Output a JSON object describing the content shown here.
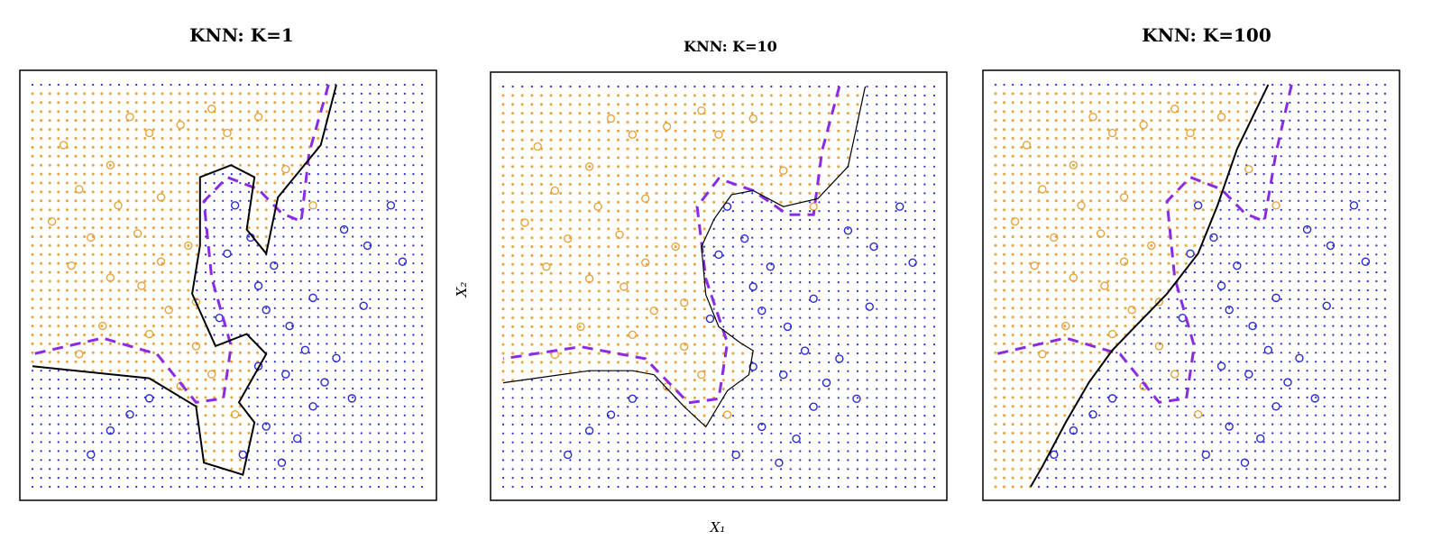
{
  "colors": {
    "orange": "#e8a33c",
    "blue": "#2a2ad0",
    "purple": "#8a2be2",
    "frame": "#000000"
  },
  "chart_data": [
    {
      "type": "scatter",
      "title": "KNN: K=1",
      "xlabel": "",
      "ylabel": "",
      "xlim": [
        0,
        1
      ],
      "ylim": [
        0,
        1
      ],
      "grid": "background class grid (orange / blue dots)",
      "legend": "none",
      "boundary_knn": [
        [
          0.78,
          1.0
        ],
        [
          0.74,
          0.85
        ],
        [
          0.63,
          0.72
        ],
        [
          0.6,
          0.58
        ],
        [
          0.55,
          0.64
        ],
        [
          0.57,
          0.77
        ],
        [
          0.51,
          0.8
        ],
        [
          0.43,
          0.77
        ],
        [
          0.43,
          0.6
        ],
        [
          0.41,
          0.48
        ],
        [
          0.47,
          0.35
        ],
        [
          0.55,
          0.38
        ],
        [
          0.6,
          0.33
        ],
        [
          0.53,
          0.21
        ],
        [
          0.57,
          0.16
        ],
        [
          0.54,
          0.03
        ],
        [
          0.44,
          0.06
        ],
        [
          0.42,
          0.2
        ],
        [
          0.3,
          0.27
        ],
        [
          0.0,
          0.3
        ]
      ],
      "boundary_bayes": [
        [
          0.76,
          1.0
        ],
        [
          0.71,
          0.83
        ],
        [
          0.69,
          0.66
        ],
        [
          0.64,
          0.68
        ],
        [
          0.58,
          0.74
        ],
        [
          0.5,
          0.77
        ],
        [
          0.44,
          0.71
        ],
        [
          0.46,
          0.52
        ],
        [
          0.51,
          0.35
        ],
        [
          0.49,
          0.22
        ],
        [
          0.42,
          0.21
        ],
        [
          0.32,
          0.33
        ],
        [
          0.18,
          0.37
        ],
        [
          0.0,
          0.33
        ]
      ],
      "class_orange": [
        [
          0.25,
          0.92
        ],
        [
          0.3,
          0.88
        ],
        [
          0.38,
          0.9
        ],
        [
          0.46,
          0.94
        ],
        [
          0.5,
          0.88
        ],
        [
          0.2,
          0.8
        ],
        [
          0.12,
          0.74
        ],
        [
          0.33,
          0.72
        ],
        [
          0.05,
          0.66
        ],
        [
          0.15,
          0.62
        ],
        [
          0.27,
          0.63
        ],
        [
          0.1,
          0.55
        ],
        [
          0.2,
          0.52
        ],
        [
          0.28,
          0.5
        ],
        [
          0.35,
          0.44
        ],
        [
          0.42,
          0.46
        ],
        [
          0.18,
          0.4
        ],
        [
          0.3,
          0.38
        ],
        [
          0.12,
          0.33
        ],
        [
          0.42,
          0.35
        ],
        [
          0.38,
          0.25
        ],
        [
          0.46,
          0.28
        ],
        [
          0.52,
          0.18
        ],
        [
          0.58,
          0.92
        ],
        [
          0.65,
          0.79
        ],
        [
          0.72,
          0.7
        ],
        [
          0.08,
          0.85
        ],
        [
          0.22,
          0.7
        ],
        [
          0.4,
          0.6
        ],
        [
          0.33,
          0.56
        ]
      ],
      "class_blue": [
        [
          0.52,
          0.7
        ],
        [
          0.56,
          0.62
        ],
        [
          0.62,
          0.55
        ],
        [
          0.6,
          0.44
        ],
        [
          0.66,
          0.4
        ],
        [
          0.7,
          0.34
        ],
        [
          0.58,
          0.3
        ],
        [
          0.65,
          0.28
        ],
        [
          0.75,
          0.26
        ],
        [
          0.72,
          0.2
        ],
        [
          0.6,
          0.15
        ],
        [
          0.68,
          0.12
        ],
        [
          0.54,
          0.08
        ],
        [
          0.64,
          0.06
        ],
        [
          0.3,
          0.22
        ],
        [
          0.25,
          0.18
        ],
        [
          0.2,
          0.14
        ],
        [
          0.15,
          0.08
        ],
        [
          0.8,
          0.64
        ],
        [
          0.86,
          0.6
        ],
        [
          0.92,
          0.7
        ],
        [
          0.95,
          0.56
        ],
        [
          0.85,
          0.45
        ],
        [
          0.78,
          0.32
        ],
        [
          0.82,
          0.22
        ],
        [
          0.72,
          0.47
        ],
        [
          0.48,
          0.42
        ],
        [
          0.5,
          0.58
        ],
        [
          0.58,
          0.5
        ]
      ]
    },
    {
      "type": "scatter",
      "title": "KNN: K=10",
      "xlabel": "X₁",
      "ylabel": "X₂",
      "xlim": [
        0,
        1
      ],
      "ylim": [
        0,
        1
      ],
      "grid": "background class grid (orange / blue dots)",
      "legend": "none",
      "boundary_knn": [
        [
          0.84,
          1.0
        ],
        [
          0.8,
          0.8
        ],
        [
          0.73,
          0.72
        ],
        [
          0.65,
          0.7
        ],
        [
          0.58,
          0.74
        ],
        [
          0.53,
          0.73
        ],
        [
          0.49,
          0.67
        ],
        [
          0.46,
          0.6
        ],
        [
          0.47,
          0.48
        ],
        [
          0.5,
          0.4
        ],
        [
          0.55,
          0.36
        ],
        [
          0.58,
          0.34
        ],
        [
          0.57,
          0.28
        ],
        [
          0.52,
          0.24
        ],
        [
          0.47,
          0.15
        ],
        [
          0.42,
          0.2
        ],
        [
          0.35,
          0.28
        ],
        [
          0.3,
          0.29
        ],
        [
          0.2,
          0.29
        ],
        [
          0.0,
          0.26
        ]
      ],
      "boundary_bayes": [
        [
          0.78,
          1.0
        ],
        [
          0.74,
          0.84
        ],
        [
          0.72,
          0.68
        ],
        [
          0.66,
          0.68
        ],
        [
          0.58,
          0.74
        ],
        [
          0.5,
          0.77
        ],
        [
          0.45,
          0.7
        ],
        [
          0.47,
          0.52
        ],
        [
          0.52,
          0.36
        ],
        [
          0.5,
          0.22
        ],
        [
          0.43,
          0.21
        ],
        [
          0.33,
          0.32
        ],
        [
          0.18,
          0.35
        ],
        [
          0.0,
          0.32
        ]
      ],
      "class_orange": [
        [
          0.25,
          0.92
        ],
        [
          0.3,
          0.88
        ],
        [
          0.38,
          0.9
        ],
        [
          0.46,
          0.94
        ],
        [
          0.5,
          0.88
        ],
        [
          0.2,
          0.8
        ],
        [
          0.12,
          0.74
        ],
        [
          0.33,
          0.72
        ],
        [
          0.05,
          0.66
        ],
        [
          0.15,
          0.62
        ],
        [
          0.27,
          0.63
        ],
        [
          0.1,
          0.55
        ],
        [
          0.2,
          0.52
        ],
        [
          0.28,
          0.5
        ],
        [
          0.35,
          0.44
        ],
        [
          0.42,
          0.46
        ],
        [
          0.18,
          0.4
        ],
        [
          0.3,
          0.38
        ],
        [
          0.12,
          0.33
        ],
        [
          0.42,
          0.35
        ],
        [
          0.38,
          0.25
        ],
        [
          0.46,
          0.28
        ],
        [
          0.52,
          0.18
        ],
        [
          0.58,
          0.92
        ],
        [
          0.65,
          0.79
        ],
        [
          0.72,
          0.7
        ],
        [
          0.08,
          0.85
        ],
        [
          0.22,
          0.7
        ],
        [
          0.4,
          0.6
        ],
        [
          0.33,
          0.56
        ]
      ],
      "class_blue": [
        [
          0.52,
          0.7
        ],
        [
          0.56,
          0.62
        ],
        [
          0.62,
          0.55
        ],
        [
          0.6,
          0.44
        ],
        [
          0.66,
          0.4
        ],
        [
          0.7,
          0.34
        ],
        [
          0.58,
          0.3
        ],
        [
          0.65,
          0.28
        ],
        [
          0.75,
          0.26
        ],
        [
          0.72,
          0.2
        ],
        [
          0.6,
          0.15
        ],
        [
          0.68,
          0.12
        ],
        [
          0.54,
          0.08
        ],
        [
          0.64,
          0.06
        ],
        [
          0.3,
          0.22
        ],
        [
          0.25,
          0.18
        ],
        [
          0.2,
          0.14
        ],
        [
          0.15,
          0.08
        ],
        [
          0.8,
          0.64
        ],
        [
          0.86,
          0.6
        ],
        [
          0.92,
          0.7
        ],
        [
          0.95,
          0.56
        ],
        [
          0.85,
          0.45
        ],
        [
          0.78,
          0.32
        ],
        [
          0.82,
          0.22
        ],
        [
          0.72,
          0.47
        ],
        [
          0.48,
          0.42
        ],
        [
          0.5,
          0.58
        ],
        [
          0.58,
          0.5
        ]
      ]
    },
    {
      "type": "scatter",
      "title": "KNN: K=100",
      "xlabel": "",
      "ylabel": "",
      "xlim": [
        0,
        1
      ],
      "ylim": [
        0,
        1
      ],
      "grid": "background class grid (orange / blue dots)",
      "legend": "none",
      "boundary_knn": [
        [
          0.7,
          1.0
        ],
        [
          0.62,
          0.84
        ],
        [
          0.57,
          0.7
        ],
        [
          0.52,
          0.58
        ],
        [
          0.44,
          0.48
        ],
        [
          0.36,
          0.4
        ],
        [
          0.3,
          0.34
        ],
        [
          0.24,
          0.26
        ],
        [
          0.18,
          0.16
        ],
        [
          0.12,
          0.05
        ],
        [
          0.09,
          0.0
        ]
      ],
      "boundary_bayes": [
        [
          0.76,
          1.0
        ],
        [
          0.72,
          0.83
        ],
        [
          0.69,
          0.66
        ],
        [
          0.64,
          0.68
        ],
        [
          0.58,
          0.74
        ],
        [
          0.5,
          0.77
        ],
        [
          0.44,
          0.71
        ],
        [
          0.46,
          0.52
        ],
        [
          0.51,
          0.35
        ],
        [
          0.49,
          0.22
        ],
        [
          0.42,
          0.21
        ],
        [
          0.32,
          0.33
        ],
        [
          0.18,
          0.37
        ],
        [
          0.0,
          0.33
        ]
      ],
      "class_orange": [
        [
          0.25,
          0.92
        ],
        [
          0.3,
          0.88
        ],
        [
          0.38,
          0.9
        ],
        [
          0.46,
          0.94
        ],
        [
          0.5,
          0.88
        ],
        [
          0.2,
          0.8
        ],
        [
          0.12,
          0.74
        ],
        [
          0.33,
          0.72
        ],
        [
          0.05,
          0.66
        ],
        [
          0.15,
          0.62
        ],
        [
          0.27,
          0.63
        ],
        [
          0.1,
          0.55
        ],
        [
          0.2,
          0.52
        ],
        [
          0.28,
          0.5
        ],
        [
          0.35,
          0.44
        ],
        [
          0.42,
          0.46
        ],
        [
          0.18,
          0.4
        ],
        [
          0.3,
          0.38
        ],
        [
          0.12,
          0.33
        ],
        [
          0.42,
          0.35
        ],
        [
          0.38,
          0.25
        ],
        [
          0.46,
          0.28
        ],
        [
          0.52,
          0.18
        ],
        [
          0.58,
          0.92
        ],
        [
          0.65,
          0.79
        ],
        [
          0.72,
          0.7
        ],
        [
          0.08,
          0.85
        ],
        [
          0.22,
          0.7
        ],
        [
          0.4,
          0.6
        ],
        [
          0.33,
          0.56
        ]
      ],
      "class_blue": [
        [
          0.52,
          0.7
        ],
        [
          0.56,
          0.62
        ],
        [
          0.62,
          0.55
        ],
        [
          0.6,
          0.44
        ],
        [
          0.66,
          0.4
        ],
        [
          0.7,
          0.34
        ],
        [
          0.58,
          0.3
        ],
        [
          0.65,
          0.28
        ],
        [
          0.75,
          0.26
        ],
        [
          0.72,
          0.2
        ],
        [
          0.6,
          0.15
        ],
        [
          0.68,
          0.12
        ],
        [
          0.54,
          0.08
        ],
        [
          0.64,
          0.06
        ],
        [
          0.3,
          0.22
        ],
        [
          0.25,
          0.18
        ],
        [
          0.2,
          0.14
        ],
        [
          0.15,
          0.08
        ],
        [
          0.8,
          0.64
        ],
        [
          0.86,
          0.6
        ],
        [
          0.92,
          0.7
        ],
        [
          0.95,
          0.56
        ],
        [
          0.85,
          0.45
        ],
        [
          0.78,
          0.32
        ],
        [
          0.82,
          0.22
        ],
        [
          0.72,
          0.47
        ],
        [
          0.48,
          0.42
        ],
        [
          0.5,
          0.58
        ],
        [
          0.58,
          0.5
        ]
      ]
    }
  ]
}
